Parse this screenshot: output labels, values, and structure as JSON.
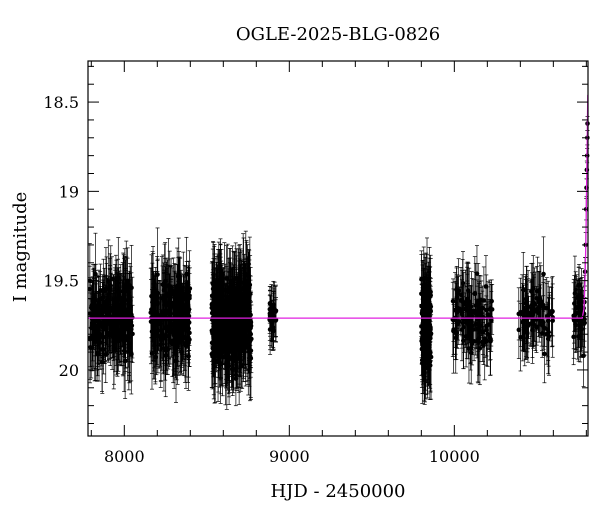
{
  "chart_data": {
    "type": "scatter",
    "title": "OGLE-2025-BLG-0826",
    "xlabel": "HJD - 2450000",
    "ylabel": "I magnitude",
    "xlim": [
      7780,
      10810
    ],
    "ylim": [
      20.37,
      18.27
    ],
    "y_inverted": true,
    "x_ticks": [
      8000,
      9000,
      10000
    ],
    "x_tick_labels": [
      "8000",
      "9000",
      "10000"
    ],
    "y_ticks": [
      18.5,
      19,
      19.5,
      20
    ],
    "y_tick_labels": [
      "18.5",
      "19",
      "19.5",
      "20"
    ],
    "grid": false,
    "baseline_magnitude": 19.71,
    "point_color": "#000000",
    "model_color": "#e020e0",
    "seasons": [
      {
        "x_start": 7790,
        "x_end": 8050,
        "mag_mean": 19.71,
        "mag_spread": 0.2,
        "err_mean": 0.18,
        "count": 260
      },
      {
        "x_start": 8160,
        "x_end": 8400,
        "mag_mean": 19.7,
        "mag_spread": 0.21,
        "err_mean": 0.19,
        "count": 230
      },
      {
        "x_start": 8530,
        "x_end": 8770,
        "mag_mean": 19.73,
        "mag_spread": 0.22,
        "err_mean": 0.2,
        "count": 420
      },
      {
        "x_start": 8880,
        "x_end": 8920,
        "mag_mean": 19.72,
        "mag_spread": 0.12,
        "err_mean": 0.12,
        "count": 30
      },
      {
        "x_start": 9800,
        "x_end": 9860,
        "mag_mean": 19.75,
        "mag_spread": 0.22,
        "err_mean": 0.2,
        "count": 140
      },
      {
        "x_start": 9990,
        "x_end": 10230,
        "mag_mean": 19.73,
        "mag_spread": 0.18,
        "err_mean": 0.17,
        "count": 120
      },
      {
        "x_start": 10390,
        "x_end": 10600,
        "mag_mean": 19.67,
        "mag_spread": 0.16,
        "err_mean": 0.16,
        "count": 90
      },
      {
        "x_start": 10720,
        "x_end": 10790,
        "mag_mean": 19.7,
        "mag_spread": 0.15,
        "err_mean": 0.16,
        "count": 40
      }
    ],
    "event_points": [
      {
        "x": 10792,
        "y": 19.45,
        "err": 0.08
      },
      {
        "x": 10796,
        "y": 19.3,
        "err": 0.07
      },
      {
        "x": 10799,
        "y": 19.1,
        "err": 0.06
      },
      {
        "x": 10801,
        "y": 18.98,
        "err": 0.05
      },
      {
        "x": 10803,
        "y": 18.88,
        "err": 0.05
      },
      {
        "x": 10805,
        "y": 18.8,
        "err": 0.04
      },
      {
        "x": 10806,
        "y": 18.7,
        "err": 0.04
      },
      {
        "x": 10807,
        "y": 18.62,
        "err": 0.04
      }
    ],
    "model_curve": [
      {
        "x": 7780,
        "y": 19.71
      },
      {
        "x": 10775,
        "y": 19.71
      },
      {
        "x": 10785,
        "y": 19.66
      },
      {
        "x": 10792,
        "y": 19.5
      },
      {
        "x": 10797,
        "y": 19.28
      },
      {
        "x": 10801,
        "y": 19.02
      },
      {
        "x": 10804,
        "y": 18.8
      },
      {
        "x": 10807,
        "y": 18.58
      },
      {
        "x": 10809,
        "y": 18.46
      }
    ]
  }
}
